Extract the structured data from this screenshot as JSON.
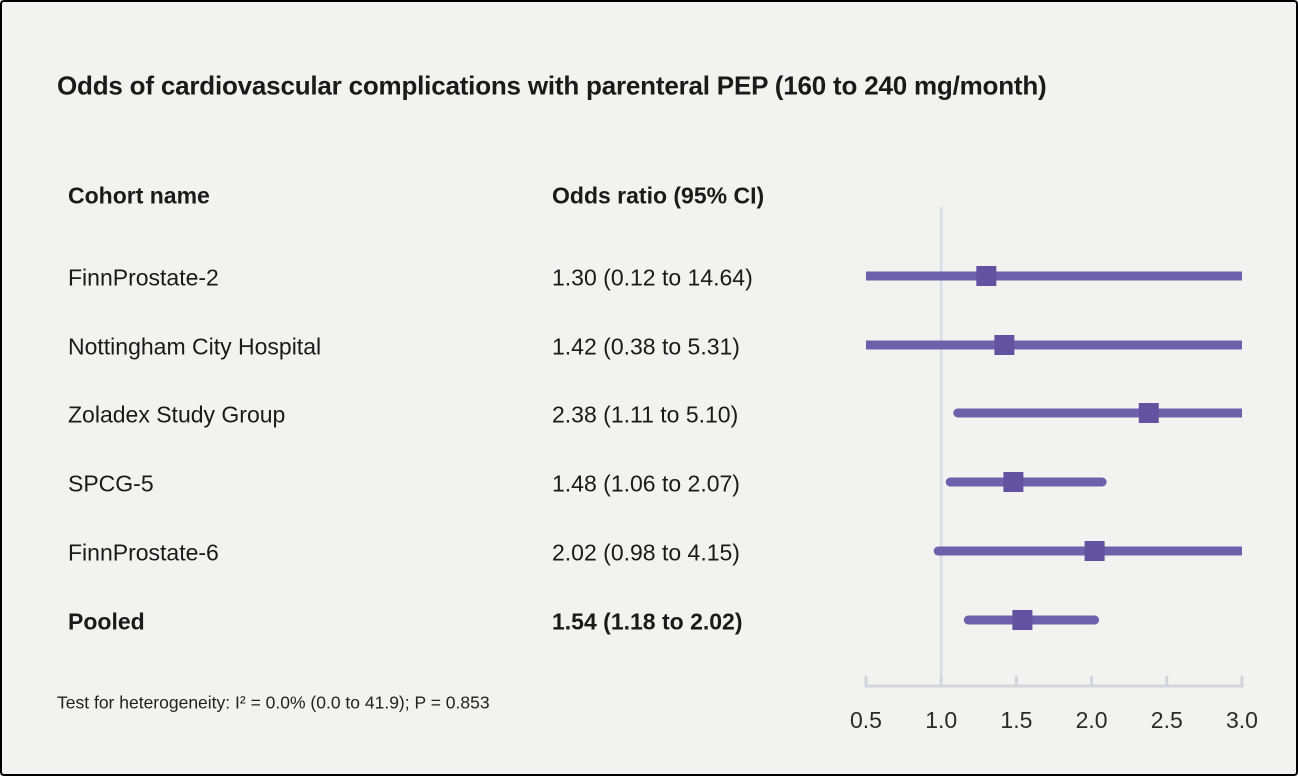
{
  "header": {
    "title": "Odds of cardiovascular complications with parenteral PEP (160 to 240 mg/month)"
  },
  "table": {
    "cohort_header": "Cohort name",
    "or_header": "Odds ratio (95% CI)"
  },
  "footnote": "Test for heterogeneity: I² = 0.0% (0.0 to 41.9); P = 0.853",
  "colors": {
    "background": "#f2f2f1",
    "text": "#1a1a1a",
    "ci_line": "#6e61ab",
    "marker": "#61539f",
    "reference_line": "#d9dce4",
    "axis": "#d2d5dc",
    "tick_label": "#2b2b2b"
  },
  "chart_data": {
    "type": "forest",
    "title": "Odds of cardiovascular complications with parenteral PEP (160 to 240 mg/month)",
    "xlabel": "Odds ratio",
    "xlim": [
      0.5,
      3.0
    ],
    "reference_line": 1.0,
    "x_ticks": [
      0.5,
      1.0,
      1.5,
      2.0,
      2.5,
      3.0
    ],
    "x_tick_labels": [
      "0.5",
      "1.0",
      "1.5",
      "2.0",
      "2.5",
      "3.0"
    ],
    "grid": false,
    "rows": [
      {
        "label": "FinnProstate-2",
        "or": 1.3,
        "ci_low": 0.12,
        "ci_high": 14.64,
        "or_text": "1.30 (0.12 to 14.64)",
        "bold": false
      },
      {
        "label": "Nottingham City Hospital",
        "or": 1.42,
        "ci_low": 0.38,
        "ci_high": 5.31,
        "or_text": "1.42 (0.38 to 5.31)",
        "bold": false
      },
      {
        "label": "Zoladex Study Group",
        "or": 2.38,
        "ci_low": 1.11,
        "ci_high": 5.1,
        "or_text": "2.38 (1.11 to 5.10)",
        "bold": false
      },
      {
        "label": "SPCG-5",
        "or": 1.48,
        "ci_low": 1.06,
        "ci_high": 2.07,
        "or_text": "1.48 (1.06 to 2.07)",
        "bold": false
      },
      {
        "label": "FinnProstate-6",
        "or": 2.02,
        "ci_low": 0.98,
        "ci_high": 4.15,
        "or_text": "2.02 (0.98 to 4.15)",
        "bold": false
      },
      {
        "label": "Pooled",
        "or": 1.54,
        "ci_low": 1.18,
        "ci_high": 2.02,
        "or_text": "1.54 (1.18 to 2.02)",
        "bold": true
      }
    ],
    "heterogeneity_note": "Test for heterogeneity: I² = 0.0% (0.0 to 41.9); P = 0.853"
  }
}
